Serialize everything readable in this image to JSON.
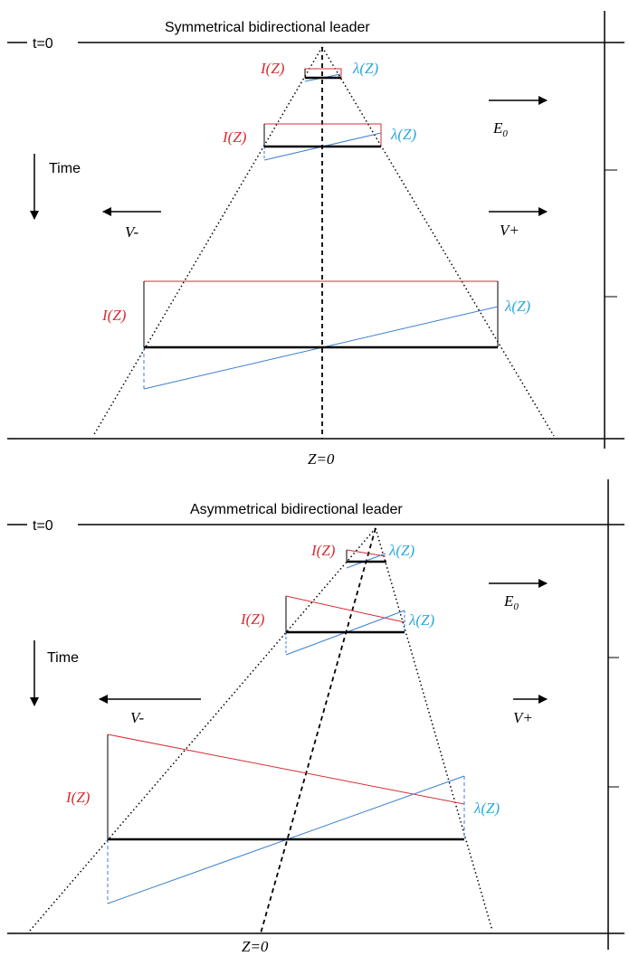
{
  "colors": {
    "current": "#d62d34",
    "line_charge_label": "#29a8dc",
    "line_charge_line": "#3b7fd0",
    "axis": "#000000"
  },
  "panels": [
    {
      "title": "Symmetrical bidirectional leader",
      "t0_label": "t=0",
      "time_label": "Time",
      "v_minus_label": "V-",
      "v_plus_label": "V+",
      "field_label": "E",
      "field_subscript": "0",
      "z0_label": "Z=0",
      "current_labels": [
        "I(Z)",
        "I(Z)",
        "I(Z)"
      ],
      "line_charge_labels": [
        "λ(Z)",
        "λ(Z)",
        "λ(Z)"
      ]
    },
    {
      "title": "Asymmetrical bidirectional leader",
      "t0_label": "t=0",
      "time_label": "Time",
      "v_minus_label": "V-",
      "v_plus_label": "V+",
      "field_label": "E",
      "field_subscript": "0",
      "z0_label": "Z=0",
      "current_labels": [
        "I(Z)",
        "I(Z)",
        "I(Z)"
      ],
      "line_charge_labels": [
        "λ(Z)",
        "λ(Z)",
        "λ(Z)"
      ]
    }
  ]
}
